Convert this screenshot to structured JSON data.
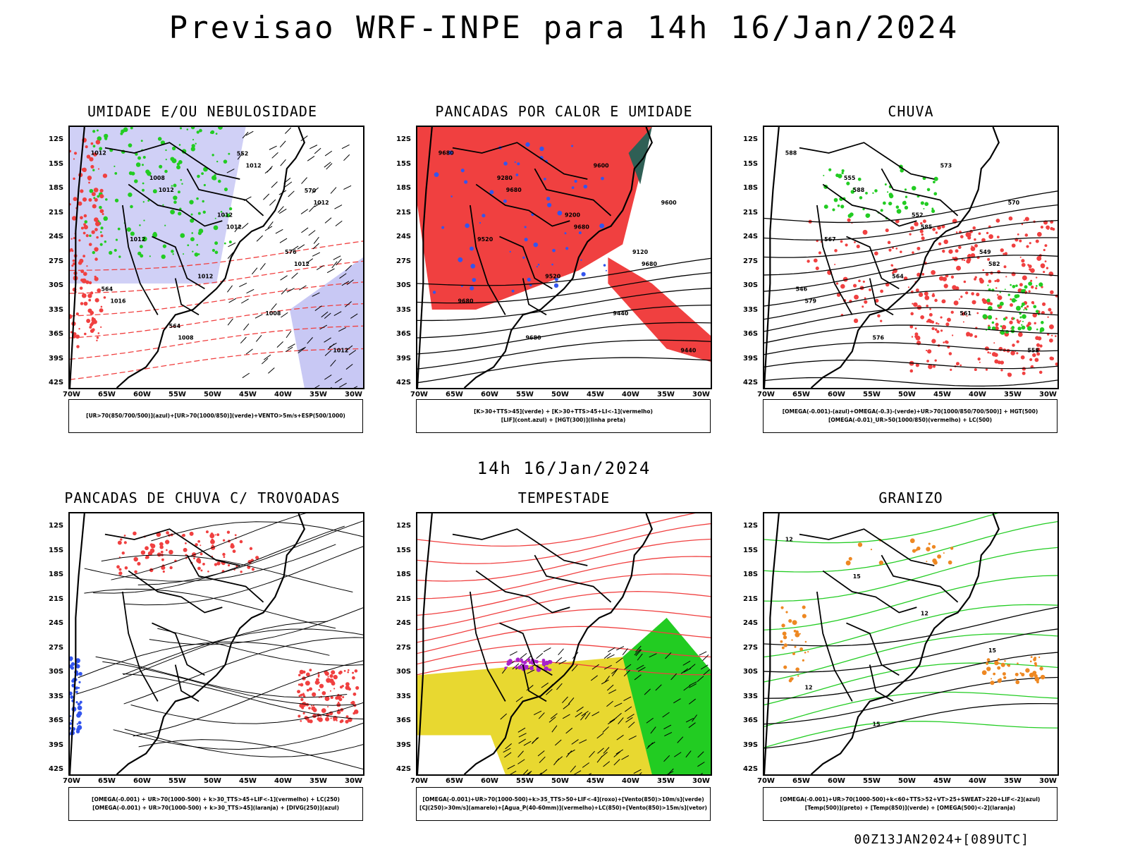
{
  "title": "Previsao WRF-INPE  para 14h 16/Jan/2024",
  "middle_title": "14h 16/Jan/2024",
  "footer": "00Z13JAN2024+[089UTC]",
  "lat_labels": [
    "12S",
    "15S",
    "18S",
    "21S",
    "24S",
    "27S",
    "30S",
    "33S",
    "36S",
    "39S",
    "42S"
  ],
  "lon_labels": [
    "70W",
    "65W",
    "60W",
    "55W",
    "50W",
    "45W",
    "40W",
    "35W",
    "30W"
  ],
  "colors": {
    "red": "#f04040",
    "green": "#22cc22",
    "blue": "#3355ee",
    "lavender": "#b0b0f0",
    "yellow": "#e8d830",
    "teal": "#2f5f55",
    "orange": "#ee8822",
    "purple": "#aa22cc"
  },
  "panels": [
    {
      "title": "UMIDADE E/OU NEBULOSIDADE",
      "legend": [
        "[UR>70(850/700/500)](azul)+[UR>70(1000/850)](verde)+VENTO>5m/s+ESP(500/1000)"
      ],
      "labels": [
        "1012",
        "1012",
        "1012",
        "1012",
        "1016",
        "1008",
        "1012",
        "1012",
        "1012",
        "1012",
        "1008",
        "1012",
        "1008",
        "1012",
        "576",
        "564",
        "564",
        "552",
        "570"
      ]
    },
    {
      "title": "PANCADAS POR CALOR E UMIDADE",
      "legend": [
        "[K>30+TTS>45](verde) + [K>30+TTS>45+LI<-1](vermelho)",
        "[LIF](cont.azul) + [HGT(300)](linha preta)"
      ],
      "labels": [
        "9680",
        "9680",
        "9680",
        "9680",
        "9680",
        "9680",
        "9600",
        "9600",
        "9520",
        "9520",
        "9440",
        "9440",
        "9280",
        "9200",
        "9120"
      ]
    },
    {
      "title": "CHUVA",
      "legend": [
        "[OMEGA(-0.001)-(azul)+OMEGA(-0.3)-(verde)+UR>70(1000/850/700/500)] + HGT(500)",
        "[OMEGA(-0.01)_UR>50(1000/850)(vermelho) + LC(500)"
      ],
      "labels": [
        "588",
        "588",
        "585",
        "582",
        "579",
        "576",
        "573",
        "570",
        "567",
        "564",
        "561",
        "558",
        "555",
        "552",
        "549",
        "546"
      ]
    },
    {
      "title": "PANCADAS DE CHUVA C/ TROVOADAS",
      "legend": [
        "[OMEGA(-0.001) + UR>70(1000-500) + k>30_TTS>45+LIF<-1](vermelho) + LC(250)",
        "[OMEGA(-0.001) + UR>70(1000-500) + k>30_TTS>45](laranja) + [DIVG(250)](azul)"
      ],
      "labels": []
    },
    {
      "title": "TEMPESTADE",
      "legend": [
        "[OMEGA(-0.001)+UR>70(1000-500)+k>35_TTS>50+LIF<-4](roxo)+[Vento(850)>10m/s](verde)",
        "[CJ(250)>30m/s](amarelo)+[Agua_P(40-60mm)](vermelho)+LC(850)+[Vento(850)>15m/s](vetor)"
      ],
      "labels": []
    },
    {
      "title": "GRANIZO",
      "legend": [
        "[OMEGA(-0.001)+UR>70(1000-500)+k<60+TTS>52+VT>25+SWEAT>220+LIF<-2](azul)",
        "[Temp(500)](preto) + [Temp(850)](verde) + [OMEGA(500)<-2](laranja)"
      ],
      "labels": [
        "12",
        "15",
        "12",
        "15",
        "12",
        "15"
      ]
    }
  ]
}
